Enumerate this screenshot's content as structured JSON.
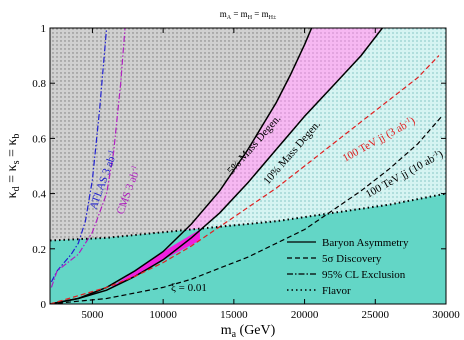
{
  "chart_data": {
    "type": "line",
    "title": "m_A = m_H = m_H±",
    "title_parts": {
      "m1": "m",
      "s1": "A",
      "eq1": " = m",
      "s2": "H",
      "eq2": " = m",
      "s3": "H±"
    },
    "xlabel": "m_a (GeV)",
    "xlabel_parts": {
      "m": "m",
      "sub": "a",
      "rest": " (GeV)"
    },
    "ylabel": "κ_d = κ_s = κ_b",
    "ylabel_parts": {
      "k1": "κ",
      "s1": "d",
      "e1": " = κ",
      "s2": "s",
      "e2": " = κ",
      "s3": "b"
    },
    "xlim": [
      2000,
      30000
    ],
    "ylim": [
      0,
      1
    ],
    "x_ticks": [
      5000,
      10000,
      15000,
      20000,
      25000,
      30000
    ],
    "x_tick_labels": [
      "5000",
      "10000",
      "15000",
      "20000",
      "25000",
      "30000"
    ],
    "y_ticks": [
      0,
      0.2,
      0.4,
      0.6,
      0.8,
      1
    ],
    "y_tick_labels": [
      "0",
      "0.2",
      "0.4",
      "0.6",
      "0.8",
      "1"
    ],
    "colors": {
      "flavor_excluded": "#63d6c6",
      "mass_degen_5": "#f6b8f2",
      "mass_degen_10": "#c8f1ee",
      "magenta_overlap": "#f020e0",
      "upper_left": "#c6c6c6",
      "discovery_100tev": "#e02020",
      "atlas_cms": "#2020d0",
      "cms": "#b020c0"
    },
    "series": [
      {
        "name": "Baryon Asymmetry",
        "style": "solid",
        "x": [
          2000,
          4000,
          6000,
          8000,
          10000,
          12000,
          14000,
          16000,
          18000,
          20000,
          22000,
          24000,
          25500
        ],
        "y": [
          0,
          0.02,
          0.05,
          0.1,
          0.16,
          0.24,
          0.33,
          0.44,
          0.56,
          0.68,
          0.79,
          0.9,
          1
        ]
      },
      {
        "name": "5% Mass Degen.",
        "style": "solid",
        "x": [
          2000,
          4000,
          6000,
          8000,
          10000,
          12000,
          14000,
          16000,
          18000,
          19000,
          20000,
          20500
        ],
        "y": [
          0,
          0.02,
          0.06,
          0.12,
          0.19,
          0.29,
          0.41,
          0.56,
          0.73,
          0.83,
          0.94,
          1
        ]
      },
      {
        "name": "5σ Discovery",
        "style": "dashed",
        "x": [
          2000,
          4000,
          6000,
          8000,
          10000,
          12000,
          14000,
          16000,
          18000,
          20000,
          22000,
          24000,
          26000,
          28000,
          29700
        ],
        "y": [
          0,
          0.01,
          0.02,
          0.04,
          0.06,
          0.09,
          0.13,
          0.17,
          0.22,
          0.27,
          0.34,
          0.41,
          0.49,
          0.58,
          0.68
        ]
      },
      {
        "name": "100 TeV jj (3 ab⁻¹)",
        "style": "dashed-red",
        "x": [
          2000,
          4000,
          6000,
          8000,
          10000,
          12000,
          14000,
          16000,
          18000,
          20000,
          22000,
          24000,
          26000,
          28000,
          29500
        ],
        "y": [
          0,
          0.03,
          0.06,
          0.1,
          0.15,
          0.21,
          0.28,
          0.35,
          0.42,
          0.5,
          0.58,
          0.66,
          0.74,
          0.82,
          0.9
        ]
      },
      {
        "name": "ATLAS 3 ab⁻¹",
        "style": "dash-dot-blue",
        "x": [
          2100,
          2500,
          3000,
          3500,
          4000,
          4500,
          5000,
          5500,
          6000
        ],
        "y": [
          0.08,
          0.12,
          0.15,
          0.18,
          0.22,
          0.3,
          0.45,
          0.7,
          1
        ]
      },
      {
        "name": "CMS 3 ab⁻¹",
        "style": "dash-dot-purple",
        "x": [
          2100,
          2500,
          3000,
          4000,
          5000,
          6000,
          6500,
          7000,
          7300
        ],
        "y": [
          0.06,
          0.12,
          0.14,
          0.18,
          0.26,
          0.4,
          0.55,
          0.8,
          1
        ]
      },
      {
        "name": "Flavor",
        "style": "dotted",
        "x": [
          2000,
          6000,
          10000,
          14000,
          18000,
          22000,
          26000,
          30000
        ],
        "y": [
          0.23,
          0.24,
          0.26,
          0.28,
          0.3,
          0.33,
          0.36,
          0.4
        ]
      }
    ],
    "annotations": {
      "mass_degen_5": "5% Mass Degen.",
      "mass_degen_10": "10% Mass Degen.",
      "tev_3": "100 TeV jj (3 ab",
      "tev_3_sup": "-1",
      "tev_3_close": ")",
      "tev_10": "100 TeV jj (10 ab",
      "tev_10_sup": "-1",
      "tev_10_close": ")",
      "atlas": "ATLAS 3 ab",
      "atlas_sup": "-1",
      "cms": "CMS 3 ab",
      "cms_sup": "-1",
      "xi": "ξ = 0.01"
    },
    "legend": {
      "placement": "bottom-right",
      "entries": [
        {
          "label": "Baryon Asymmetry",
          "style": "solid"
        },
        {
          "label": "5σ Discovery",
          "style": "dashed"
        },
        {
          "label": "95% CL Exclusion",
          "style": "dashdot"
        },
        {
          "label": "Flavor",
          "style": "dotted"
        }
      ]
    }
  }
}
